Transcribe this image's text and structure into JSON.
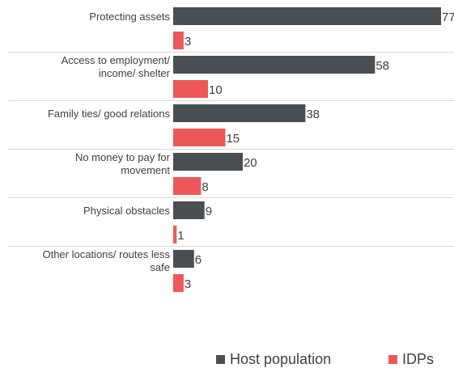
{
  "chart_data": {
    "type": "bar",
    "orientation": "horizontal",
    "categories": [
      [
        "Protecting assets"
      ],
      [
        "Access to employment/",
        "income/ shelter"
      ],
      [
        "Family ties/ good relations"
      ],
      [
        "No money to pay for",
        "movement"
      ],
      [
        "Physical obstacles"
      ],
      [
        "Other locations/ routes less",
        "safe"
      ]
    ],
    "series": [
      {
        "name": "Host population",
        "color": "#4a4f54",
        "values": [
          77,
          58,
          38,
          20,
          9,
          6
        ]
      },
      {
        "name": "IDPs",
        "color": "#ee5859",
        "values": [
          3,
          10,
          15,
          8,
          1,
          3
        ]
      }
    ],
    "xlim": [
      0,
      77
    ],
    "legend_position": "bottom",
    "gridlines": "separators between categories"
  }
}
